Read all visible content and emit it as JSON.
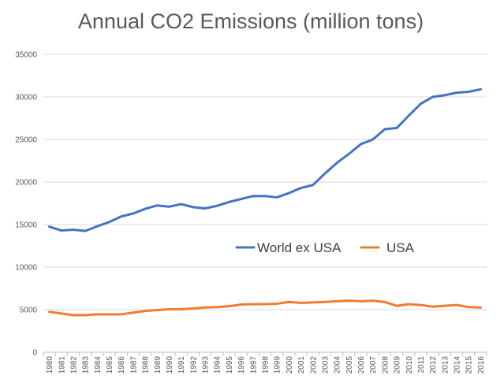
{
  "chart_data": {
    "type": "line",
    "title": "Annual CO2 Emissions (million tons)",
    "xlabel": "",
    "ylabel": "",
    "ylim": [
      0,
      35000
    ],
    "y_ticks": [
      0,
      5000,
      10000,
      15000,
      20000,
      25000,
      30000,
      35000
    ],
    "y_tick_labels": [
      "0",
      "5000",
      "10000",
      "15000",
      "20000",
      "25000",
      "30000",
      "35000"
    ],
    "grid": true,
    "legend_position": "center-right",
    "categories": [
      "1980",
      "1981",
      "1982",
      "1983",
      "1984",
      "1985",
      "1986",
      "1987",
      "1988",
      "1989",
      "1990",
      "1991",
      "1992",
      "1993",
      "1994",
      "1995",
      "1996",
      "1997",
      "1998",
      "1999",
      "2000",
      "2001",
      "2002",
      "2003",
      "2004",
      "2005",
      "2006",
      "2007",
      "2008",
      "2009",
      "2010",
      "2011",
      "2012",
      "2013",
      "2014",
      "2015",
      "2016"
    ],
    "series": [
      {
        "name": "World ex USA",
        "color": "#4472C4",
        "values": [
          14750,
          14300,
          14400,
          14250,
          14800,
          15300,
          15950,
          16300,
          16850,
          17250,
          17100,
          17400,
          17050,
          16900,
          17200,
          17650,
          18000,
          18350,
          18350,
          18200,
          18700,
          19300,
          19650,
          21000,
          22250,
          23300,
          24450,
          25000,
          26200,
          26350,
          27800,
          29200,
          30000,
          30200,
          30500,
          30600,
          30900
        ]
      },
      {
        "name": "USA",
        "color": "#ED7D31",
        "values": [
          4750,
          4550,
          4350,
          4350,
          4450,
          4450,
          4450,
          4650,
          4850,
          4950,
          5050,
          5050,
          5150,
          5250,
          5300,
          5400,
          5600,
          5650,
          5650,
          5700,
          5900,
          5800,
          5850,
          5900,
          6000,
          6050,
          6000,
          6050,
          5900,
          5450,
          5650,
          5550,
          5350,
          5450,
          5550,
          5300,
          5250
        ]
      }
    ]
  }
}
